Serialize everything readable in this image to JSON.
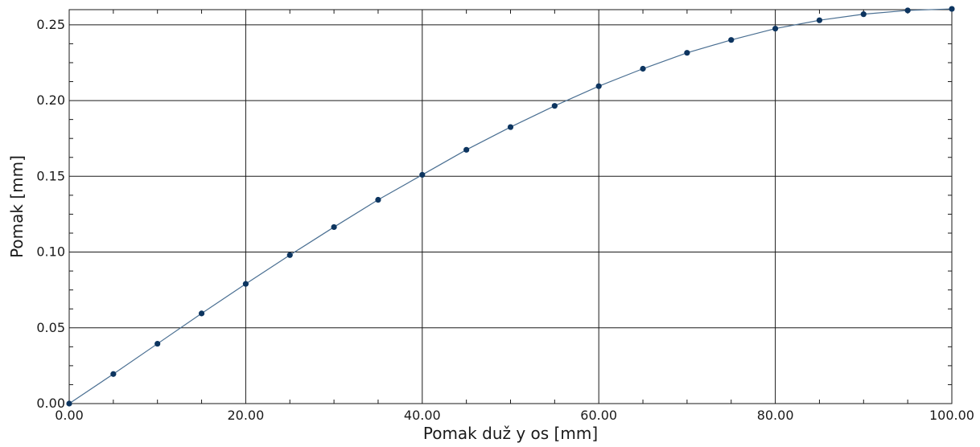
{
  "chart_data": {
    "type": "line",
    "title": "",
    "xlabel": "Pomak duž y os [mm]",
    "ylabel": "Pomak [mm]",
    "xlim": [
      0,
      100
    ],
    "ylim": [
      0,
      0.26
    ],
    "x_ticks": [
      0,
      20,
      40,
      60,
      80,
      100
    ],
    "x_tick_labels": [
      "0.00",
      "20.00",
      "40.00",
      "60.00",
      "80.00",
      "100.00"
    ],
    "y_ticks": [
      0,
      0.05,
      0.1,
      0.15,
      0.2,
      0.25
    ],
    "y_tick_labels": [
      "0.00",
      "0.05",
      "0.10",
      "0.15",
      "0.20",
      "0.25"
    ],
    "grid": true,
    "series": [
      {
        "color": "#4a6f92",
        "marker_color": "#0d3560",
        "x": [
          0,
          5,
          10,
          15,
          20,
          25,
          30,
          35,
          40,
          45,
          50,
          55,
          60,
          65,
          70,
          75,
          80,
          85,
          90,
          95,
          100
        ],
        "y": [
          0.0,
          0.0195,
          0.0395,
          0.0595,
          0.079,
          0.098,
          0.1165,
          0.1345,
          0.151,
          0.1675,
          0.1825,
          0.1965,
          0.2095,
          0.221,
          0.2315,
          0.24,
          0.2475,
          0.253,
          0.257,
          0.2595,
          0.2605
        ]
      }
    ]
  }
}
